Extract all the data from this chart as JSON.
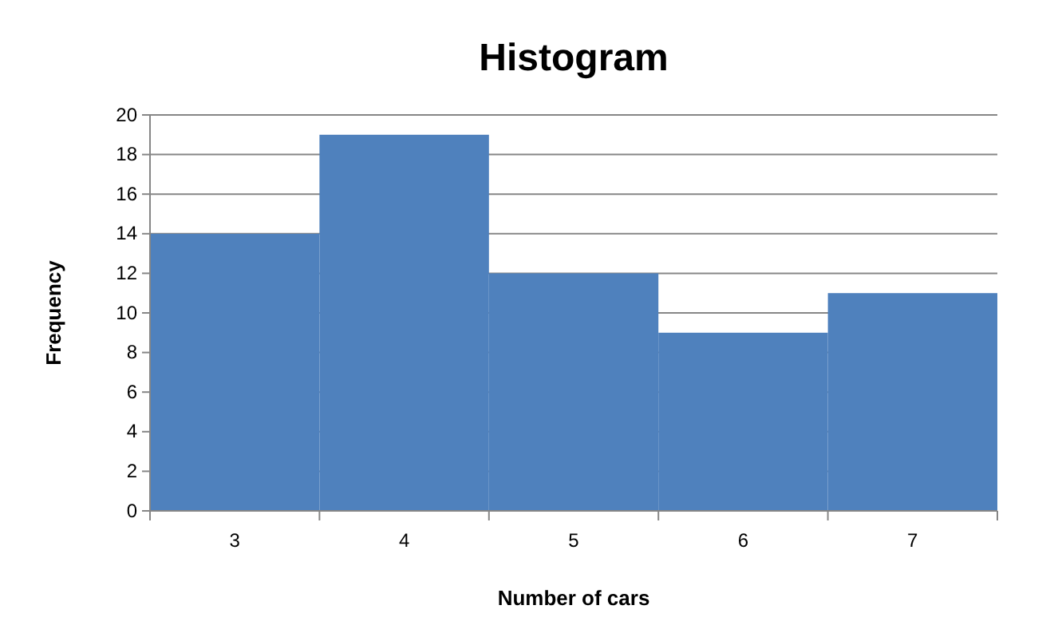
{
  "chart_data": {
    "type": "bar",
    "title": "Histogram",
    "xlabel": "Number of cars",
    "ylabel": "Frequency",
    "categories": [
      "3",
      "4",
      "5",
      "6",
      "7"
    ],
    "values": [
      14,
      19,
      12,
      9,
      11
    ],
    "color": "#4f81bd",
    "ylim": [
      0,
      20
    ],
    "yticks": [
      0,
      2,
      4,
      6,
      8,
      10,
      12,
      14,
      16,
      18,
      20
    ],
    "grid": "y"
  }
}
